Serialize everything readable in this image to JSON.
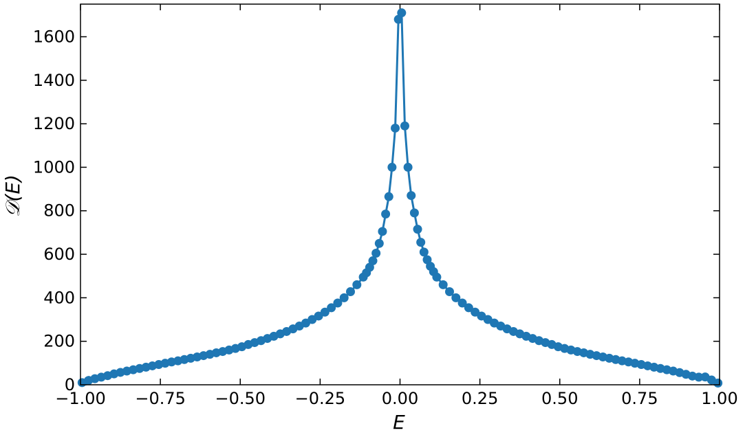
{
  "chart_data": {
    "type": "line",
    "xlabel": "E",
    "ylabel": "𝒟(E)",
    "x": [
      -0.995,
      -0.975,
      -0.955,
      -0.935,
      -0.915,
      -0.895,
      -0.875,
      -0.855,
      -0.835,
      -0.815,
      -0.795,
      -0.775,
      -0.755,
      -0.735,
      -0.715,
      -0.695,
      -0.675,
      -0.655,
      -0.635,
      -0.615,
      -0.595,
      -0.575,
      -0.555,
      -0.535,
      -0.515,
      -0.495,
      -0.475,
      -0.455,
      -0.435,
      -0.415,
      -0.395,
      -0.375,
      -0.355,
      -0.335,
      -0.315,
      -0.295,
      -0.275,
      -0.255,
      -0.235,
      -0.215,
      -0.195,
      -0.175,
      -0.155,
      -0.135,
      -0.115,
      -0.105,
      -0.095,
      -0.085,
      -0.075,
      -0.065,
      -0.055,
      -0.045,
      -0.035,
      -0.025,
      -0.015,
      -0.005,
      0.005,
      0.015,
      0.025,
      0.035,
      0.045,
      0.055,
      0.065,
      0.075,
      0.085,
      0.095,
      0.105,
      0.115,
      0.135,
      0.155,
      0.175,
      0.195,
      0.215,
      0.235,
      0.255,
      0.275,
      0.295,
      0.315,
      0.335,
      0.355,
      0.375,
      0.395,
      0.415,
      0.435,
      0.455,
      0.475,
      0.495,
      0.515,
      0.535,
      0.555,
      0.575,
      0.595,
      0.615,
      0.635,
      0.655,
      0.675,
      0.695,
      0.715,
      0.735,
      0.755,
      0.775,
      0.795,
      0.815,
      0.835,
      0.855,
      0.875,
      0.895,
      0.915,
      0.935,
      0.955,
      0.975,
      0.995
    ],
    "series": [
      {
        "color": "#1f77b4",
        "values": [
          10,
          20,
          28,
          35,
          42,
          50,
          57,
          63,
          69,
          75,
          81,
          87,
          93,
          99,
          105,
          110,
          116,
          122,
          128,
          134,
          140,
          147,
          153,
          160,
          167,
          175,
          185,
          194,
          203,
          213,
          223,
          234,
          245,
          257,
          270,
          284,
          300,
          316,
          334,
          354,
          376,
          400,
          428,
          460,
          495,
          515,
          540,
          570,
          605,
          650,
          705,
          785,
          865,
          1000,
          1180,
          1680,
          1710,
          1190,
          1000,
          870,
          790,
          715,
          655,
          610,
          575,
          545,
          520,
          495,
          460,
          428,
          400,
          376,
          354,
          334,
          316,
          300,
          284,
          270,
          257,
          245,
          234,
          223,
          213,
          203,
          194,
          185,
          175,
          167,
          160,
          153,
          147,
          140,
          134,
          128,
          122,
          116,
          110,
          105,
          99,
          93,
          87,
          81,
          75,
          69,
          63,
          56,
          48,
          40,
          35,
          36,
          22,
          8
        ]
      }
    ],
    "xlim": [
      -1,
      1
    ],
    "xticks": [
      {
        "value": -1,
        "label": "−1.00"
      },
      {
        "value": -0.75,
        "label": "−0.75"
      },
      {
        "value": -0.5,
        "label": "−0.50"
      },
      {
        "value": -0.25,
        "label": "−0.25"
      },
      {
        "value": 0,
        "label": "0.00"
      },
      {
        "value": 0.25,
        "label": "0.25"
      },
      {
        "value": 0.5,
        "label": "0.50"
      },
      {
        "value": 0.75,
        "label": "0.75"
      },
      {
        "value": 1,
        "label": "1.00"
      }
    ],
    "ylim": [
      0,
      1750
    ],
    "yticks": [
      0,
      200,
      400,
      600,
      800,
      1000,
      1200,
      1400,
      1600
    ],
    "grid": false
  }
}
